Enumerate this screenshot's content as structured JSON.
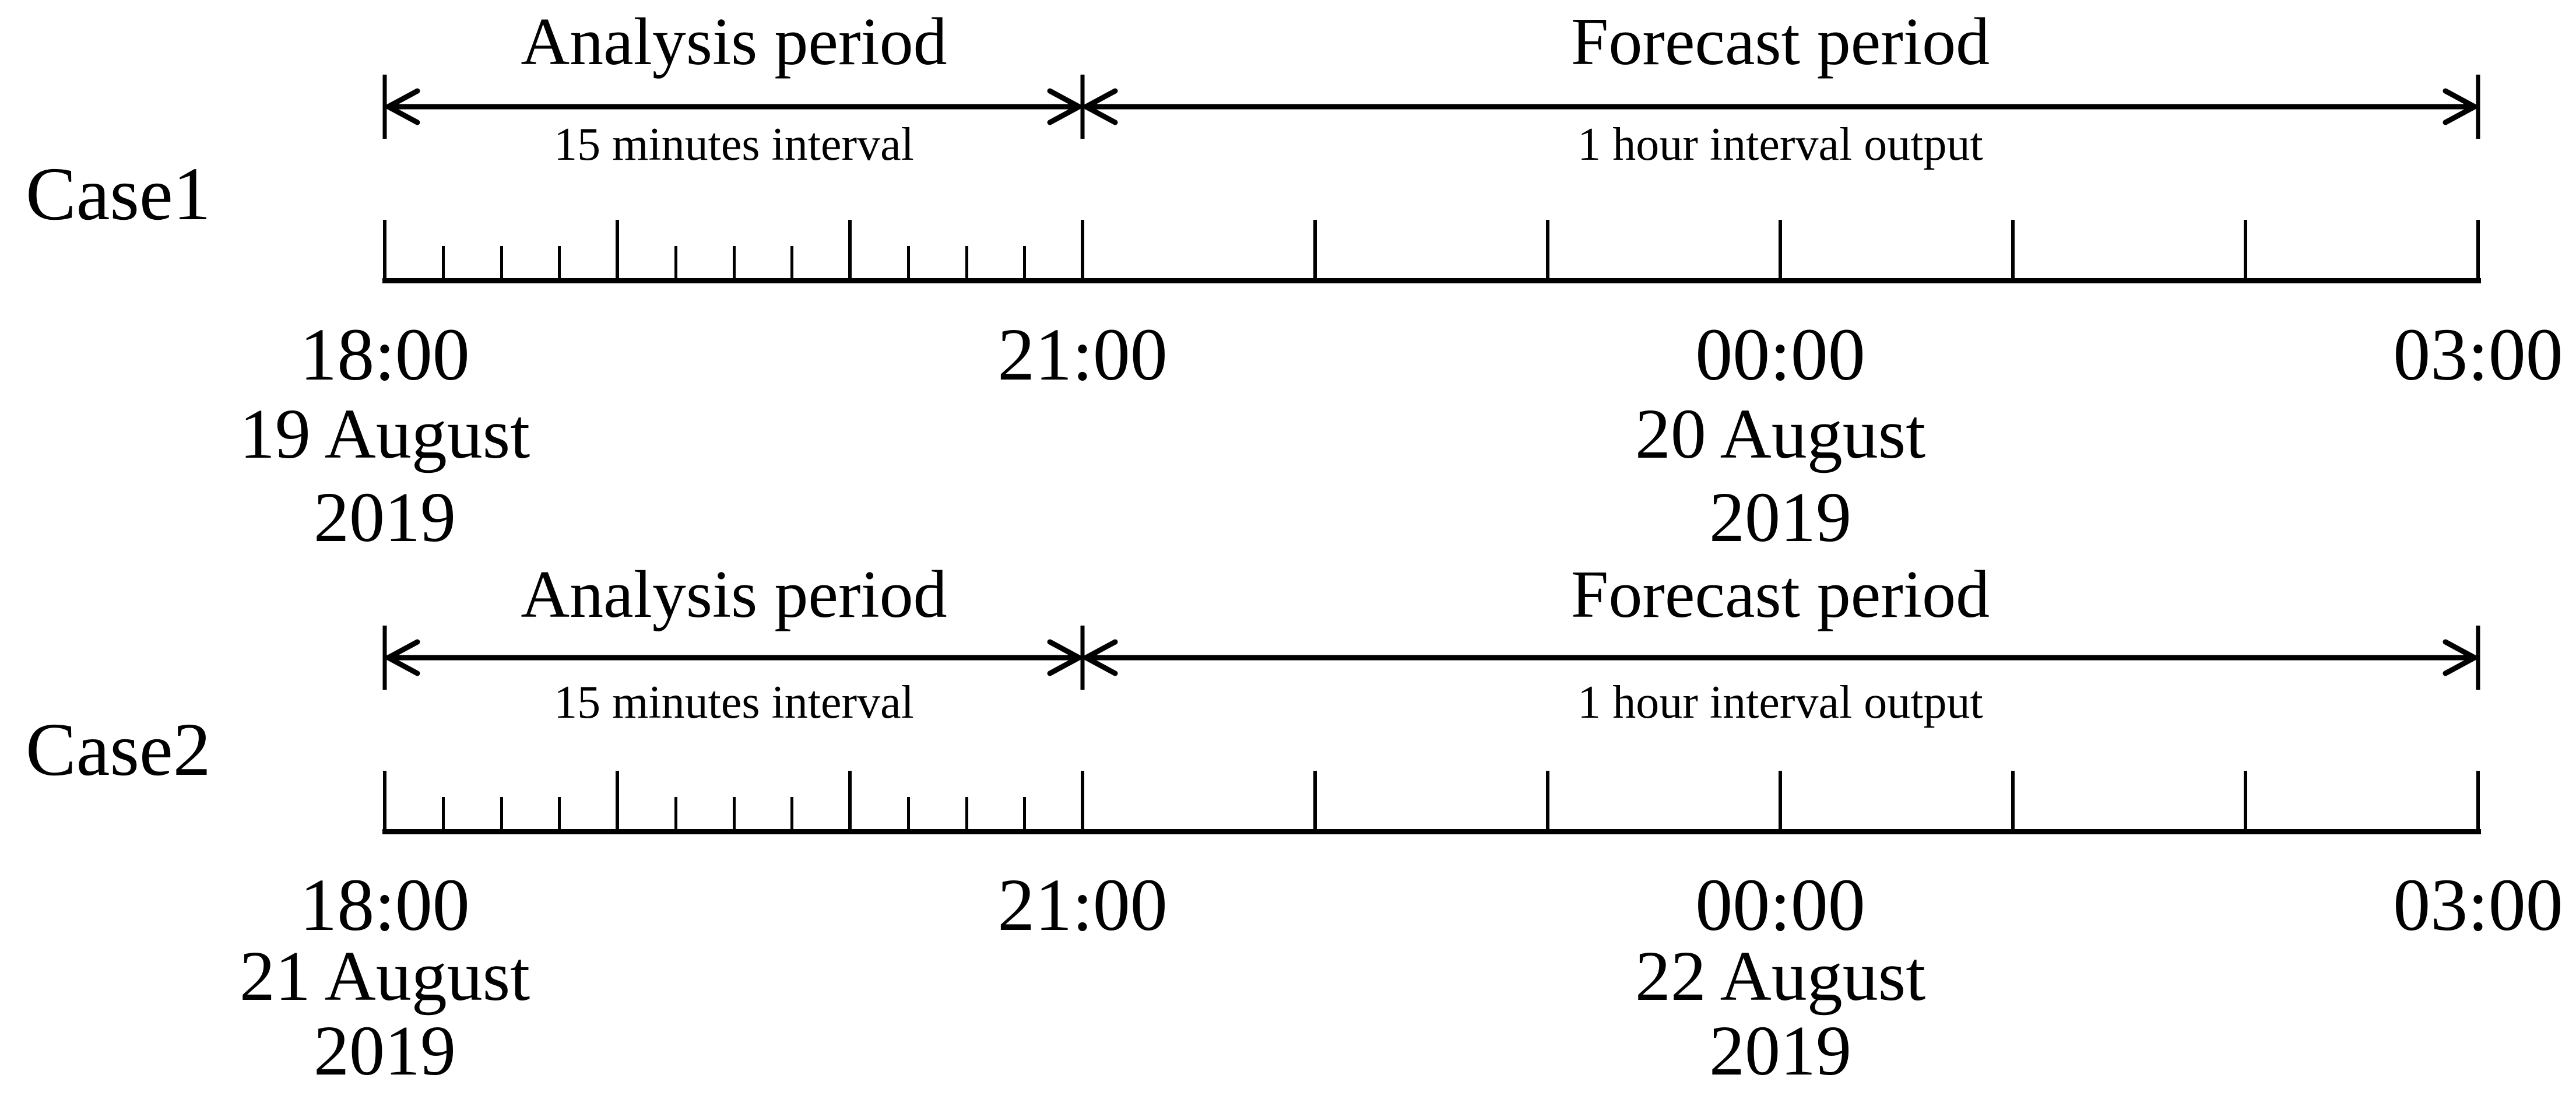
{
  "figure": {
    "background": "#ffffff",
    "ink": "#000000",
    "timeline": {
      "start": "18:00",
      "analysis_end": "21:00",
      "end": "03:00",
      "total_hours": 9,
      "analysis_hours": 3,
      "minor_ticks_per_hour": 4,
      "major_interval": "1 hour",
      "minor_interval": "15 minutes"
    },
    "cases": [
      {
        "label": "Case1",
        "analysis_title": "Analysis period",
        "analysis_subtitle": "15 minutes interval",
        "forecast_title": "Forecast period",
        "forecast_subtitle": "1 hour interval output",
        "time_labels": [
          "18:00",
          "21:00",
          "00:00",
          "03:00"
        ],
        "start_date_line1": "19 August",
        "start_date_line2": "2019",
        "midnight_date_line1": "20 August",
        "midnight_date_line2": "2019"
      },
      {
        "label": "Case2",
        "analysis_title": "Analysis period",
        "analysis_subtitle": "15 minutes interval",
        "forecast_title": "Forecast period",
        "forecast_subtitle": "1 hour interval output",
        "time_labels": [
          "18:00",
          "21:00",
          "00:00",
          "03:00"
        ],
        "start_date_line1": "21 August",
        "start_date_line2": "2019",
        "midnight_date_line1": "22 August",
        "midnight_date_line2": "2019"
      }
    ]
  }
}
